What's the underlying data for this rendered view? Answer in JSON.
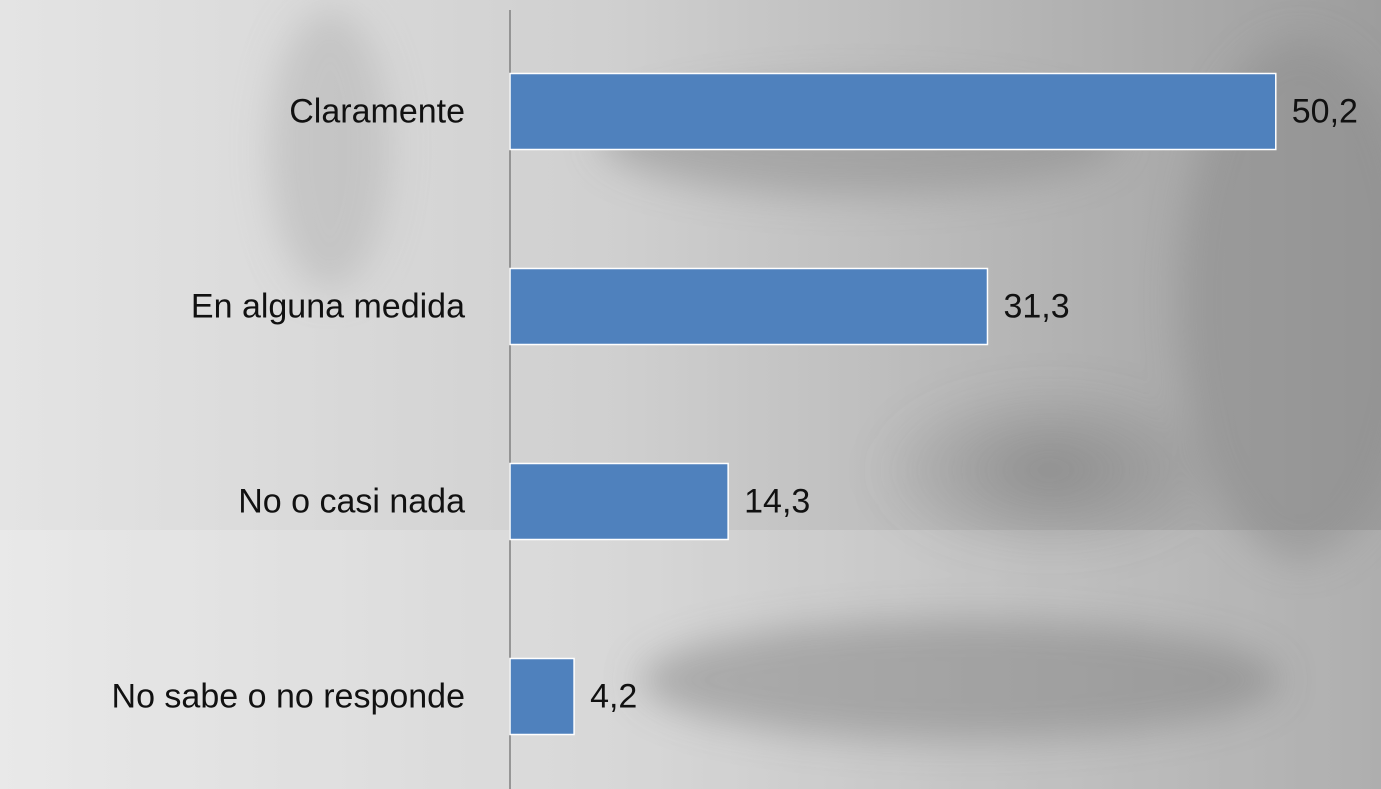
{
  "chart_data": {
    "type": "hbar",
    "categories": [
      "Claramente",
      "En alguna medida",
      "No o casi nada",
      "No sabe o no responde"
    ],
    "values": [
      50.2,
      31.3,
      14.3,
      4.2
    ],
    "value_labels": [
      "50,2",
      "31,3",
      "14,3",
      "4,2"
    ],
    "color": "#4f81bd",
    "xlim": [
      0,
      55
    ]
  }
}
